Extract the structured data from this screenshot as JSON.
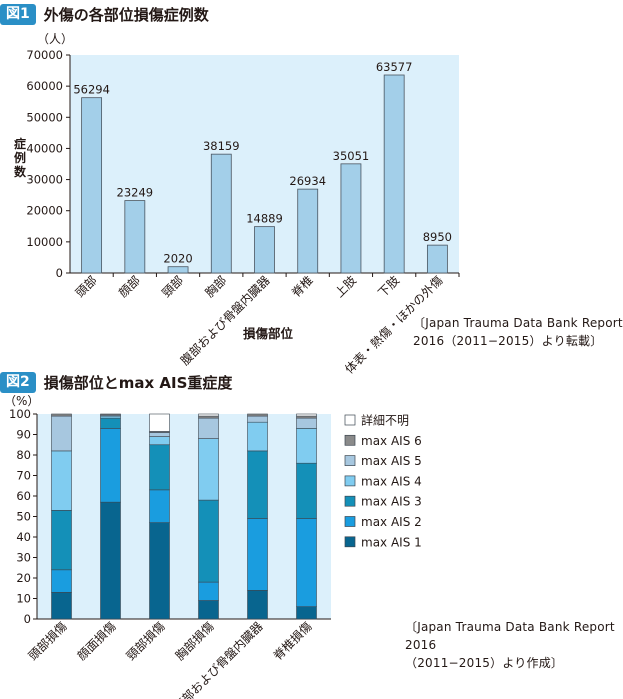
{
  "figure1": {
    "badge": "図1",
    "title": "外傷の各部位損傷症例数",
    "source": [
      "〔Japan Trauma Data Bank Report",
      "2016（2011−2015）より転載〕"
    ],
    "chart_data": {
      "type": "bar",
      "categories": [
        "頭部",
        "顔部",
        "頸部",
        "胸部",
        "腹部および骨盤内臓器",
        "脊椎",
        "上肢",
        "下肢",
        "体表・熱傷・ほかの外傷"
      ],
      "values": [
        56294,
        23249,
        2020,
        38159,
        14889,
        26934,
        35051,
        63577,
        8950
      ],
      "value_labels": [
        "56294",
        "23249",
        "2020",
        "38159",
        "14889",
        "26934",
        "35051",
        "63577",
        "8950"
      ],
      "yunit": "（人）",
      "ylabel": "症例数",
      "xlabel": "損傷部位",
      "ylim": [
        0,
        70000
      ],
      "yticks": [
        0,
        10000,
        20000,
        30000,
        40000,
        50000,
        60000,
        70000
      ],
      "colors": {
        "bar": "#a3cfe9",
        "plot_bg": "#dcf0fb"
      }
    }
  },
  "figure2": {
    "badge": "図2",
    "title": "損傷部位とmax AIS重症度",
    "source": [
      "〔Japan Trauma Data Bank Report 2016",
      "（2011−2015）より作成〕"
    ],
    "chart_data": {
      "type": "bar",
      "stacked": true,
      "categories": [
        "頭部損傷",
        "顔面損傷",
        "頸部損傷",
        "胸部損傷",
        "腹部および骨盤内臓器",
        "脊椎損傷"
      ],
      "series": [
        {
          "name": "max AIS 1",
          "color": "#08658f",
          "values": [
            13,
            57,
            47,
            9,
            14,
            6
          ]
        },
        {
          "name": "max AIS 2",
          "color": "#1a9ddf",
          "values": [
            11,
            36,
            16,
            9,
            35,
            43
          ]
        },
        {
          "name": "max AIS 3",
          "color": "#1490b8",
          "values": [
            29,
            5,
            22,
            40,
            33,
            27
          ]
        },
        {
          "name": "max AIS 4",
          "color": "#80ccf0",
          "values": [
            29,
            1,
            4,
            30,
            14,
            17
          ]
        },
        {
          "name": "max AIS 5",
          "color": "#a7c7df",
          "values": [
            17,
            0.5,
            2,
            10,
            3,
            5
          ]
        },
        {
          "name": "max AIS 6",
          "color": "#8a8a8a",
          "values": [
            1,
            0.5,
            0.5,
            1,
            1,
            1
          ]
        },
        {
          "name": "詳細不明",
          "color": "#ffffff",
          "values": [
            0,
            0,
            8.5,
            1,
            0,
            1
          ]
        }
      ],
      "yunit": "（%）",
      "ylim": [
        0,
        100
      ],
      "yticks": [
        0,
        10,
        20,
        30,
        40,
        50,
        60,
        70,
        80,
        90,
        100
      ],
      "legend_position": "right",
      "colors": {
        "plot_bg": "#dcf0fb"
      }
    }
  }
}
